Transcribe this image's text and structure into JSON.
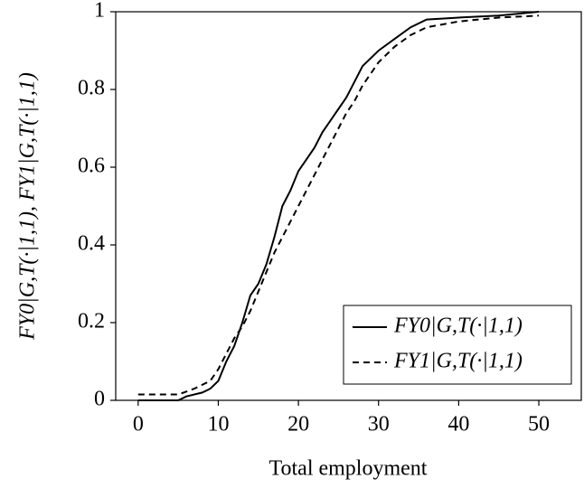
{
  "chart_data": {
    "type": "line",
    "xlabel": "Total employment",
    "ylabel": "FY0|G,T(·|1,1), FY1|G,T(·|1,1)",
    "xlim": [
      -2.8,
      55.3
    ],
    "xticks": [
      0,
      10,
      20,
      30,
      40,
      50
    ],
    "ylim": [
      0,
      1
    ],
    "yticks": [
      0,
      0.2,
      0.4,
      0.6,
      0.8,
      1
    ],
    "legend": "lower right",
    "series": [
      {
        "name": "FY0|G,T(·|1,1)",
        "color": "#000000",
        "dash": "solid",
        "x": [
          0,
          5,
          6,
          8,
          9,
          10,
          11,
          12,
          13,
          14,
          15,
          16,
          17,
          18,
          19,
          20,
          21,
          22,
          23,
          24,
          25,
          26,
          27,
          28,
          29,
          30,
          32,
          34,
          36,
          40,
          45,
          50
        ],
        "values": [
          0,
          0,
          0.01,
          0.02,
          0.03,
          0.05,
          0.1,
          0.14,
          0.2,
          0.27,
          0.3,
          0.35,
          0.42,
          0.5,
          0.54,
          0.59,
          0.62,
          0.65,
          0.69,
          0.72,
          0.75,
          0.78,
          0.82,
          0.86,
          0.88,
          0.9,
          0.93,
          0.96,
          0.98,
          0.985,
          0.99,
          1.0
        ]
      },
      {
        "name": "FY1|G,T(·|1,1)",
        "color": "#000000",
        "dash": "dashed",
        "x": [
          0,
          5,
          7,
          9,
          10,
          11,
          12,
          13,
          14,
          15,
          16,
          17,
          18,
          19,
          20,
          21,
          22,
          23,
          24,
          25,
          26,
          27,
          28,
          29,
          30,
          32,
          34,
          36,
          40,
          45,
          50
        ],
        "values": [
          0.015,
          0.015,
          0.03,
          0.05,
          0.08,
          0.12,
          0.16,
          0.19,
          0.23,
          0.28,
          0.33,
          0.38,
          0.42,
          0.46,
          0.5,
          0.54,
          0.58,
          0.62,
          0.66,
          0.7,
          0.74,
          0.77,
          0.81,
          0.84,
          0.87,
          0.91,
          0.94,
          0.96,
          0.975,
          0.985,
          0.99
        ]
      }
    ]
  }
}
